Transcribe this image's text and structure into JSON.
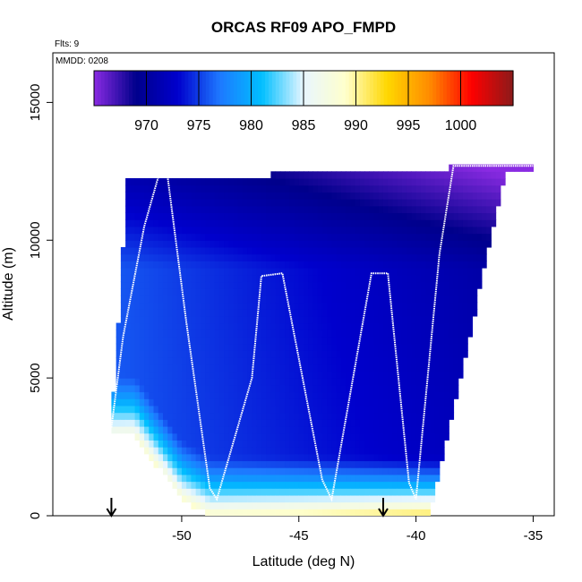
{
  "chart_data": {
    "type": "heatmap",
    "title": "ORCAS RF09 APO_FMPD",
    "flights_label": "Flts: 9",
    "mmdd_label": "MMDD: 0208",
    "xlabel": "Latitude (deg N)",
    "ylabel": "Altitude (m)",
    "xlim": [
      -55.5,
      -34.1
    ],
    "ylim": [
      0,
      16800
    ],
    "x_ticks": [
      -50,
      -45,
      -40,
      -35
    ],
    "y_ticks": [
      0,
      5000,
      10000,
      15000
    ],
    "colorbar": {
      "range": [
        965,
        1005
      ],
      "ticks": [
        970,
        975,
        980,
        985,
        990,
        995,
        1000
      ],
      "colors": [
        "#8a2be2",
        "#00008b",
        "#0000cd",
        "#1e78ff",
        "#00bfff",
        "#e8f6ff",
        "#ffffcc",
        "#ffd700",
        "#ff8c00",
        "#ff0000",
        "#8b1a1a"
      ]
    },
    "flight_track": {
      "lat": [
        -53.0,
        -52.5,
        -51.6,
        -51.0,
        -50.6,
        -49.8,
        -48.8,
        -48.5,
        -47.0,
        -46.6,
        -45.7,
        -44.0,
        -43.6,
        -41.9,
        -41.2,
        -40.3,
        -40.0,
        -39.0,
        -38.4,
        -37.8,
        -36.5,
        -35.0
      ],
      "alt": [
        3200,
        6500,
        10500,
        12300,
        12300,
        7000,
        1000,
        600,
        5000,
        8700,
        8800,
        1300,
        600,
        8800,
        8800,
        1200,
        600,
        9500,
        12700,
        12700,
        12700,
        12700
      ]
    },
    "markers": {
      "lat": [
        -53.0,
        -41.4
      ],
      "icon": "arrow-down-icon"
    }
  }
}
